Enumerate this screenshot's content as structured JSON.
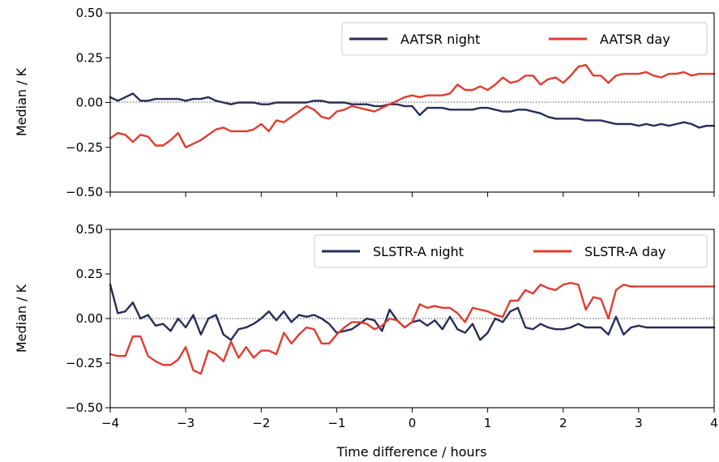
{
  "chart_data": [
    {
      "type": "line",
      "ylabel": "Median / K",
      "xlabel": "",
      "xlim": [
        -4,
        4
      ],
      "ylim": [
        -0.5,
        0.5
      ],
      "xticks": [
        "−4",
        "−3",
        "−2",
        "−1",
        "0",
        "1",
        "2",
        "3",
        "4"
      ],
      "yticks": [
        "−0.50",
        "−0.25",
        "0.00",
        "0.25",
        "0.50"
      ],
      "reference_line": 0,
      "legend_position": "top-right",
      "x": [
        -4.0,
        -3.9,
        -3.8,
        -3.7,
        -3.6,
        -3.5,
        -3.4,
        -3.3,
        -3.2,
        -3.1,
        -3.0,
        -2.9,
        -2.8,
        -2.7,
        -2.6,
        -2.5,
        -2.4,
        -2.3,
        -2.2,
        -2.1,
        -2.0,
        -1.9,
        -1.8,
        -1.7,
        -1.6,
        -1.5,
        -1.4,
        -1.3,
        -1.2,
        -1.1,
        -1.0,
        -0.9,
        -0.8,
        -0.7,
        -0.6,
        -0.5,
        -0.4,
        -0.3,
        -0.2,
        -0.1,
        0.0,
        0.1,
        0.2,
        0.3,
        0.4,
        0.5,
        0.6,
        0.7,
        0.8,
        0.9,
        1.0,
        1.1,
        1.2,
        1.3,
        1.4,
        1.5,
        1.6,
        1.7,
        1.8,
        1.9,
        2.0,
        2.1,
        2.2,
        2.3,
        2.4,
        2.5,
        2.6,
        2.7,
        2.8,
        2.9,
        3.0,
        3.1,
        3.2,
        3.3,
        3.4,
        3.5,
        3.6,
        3.7,
        3.8,
        3.9,
        4.0
      ],
      "series": [
        {
          "name": "AATSR night",
          "color": "#272d58",
          "values": [
            0.03,
            0.01,
            0.03,
            0.05,
            0.01,
            0.01,
            0.02,
            0.02,
            0.02,
            0.02,
            0.01,
            0.02,
            0.02,
            0.03,
            0.01,
            0.0,
            -0.01,
            0.0,
            0.0,
            0.0,
            -0.01,
            -0.01,
            0.0,
            0.0,
            0.0,
            0.0,
            0.0,
            0.01,
            0.01,
            0.0,
            0.0,
            0.0,
            -0.01,
            -0.01,
            -0.01,
            -0.02,
            -0.02,
            -0.01,
            -0.01,
            -0.02,
            -0.02,
            -0.07,
            -0.03,
            -0.03,
            -0.03,
            -0.04,
            -0.04,
            -0.04,
            -0.04,
            -0.03,
            -0.03,
            -0.04,
            -0.05,
            -0.05,
            -0.04,
            -0.04,
            -0.05,
            -0.06,
            -0.08,
            -0.09,
            -0.09,
            -0.09,
            -0.09,
            -0.1,
            -0.1,
            -0.1,
            -0.11,
            -0.12,
            -0.12,
            -0.12,
            -0.13,
            -0.12,
            -0.13,
            -0.12,
            -0.13,
            -0.12,
            -0.11,
            -0.12,
            -0.14,
            -0.13,
            -0.13
          ]
        },
        {
          "name": "AATSR day",
          "color": "#e03c31",
          "values": [
            -0.2,
            -0.17,
            -0.18,
            -0.22,
            -0.18,
            -0.19,
            -0.24,
            -0.24,
            -0.21,
            -0.17,
            -0.25,
            -0.23,
            -0.21,
            -0.18,
            -0.15,
            -0.14,
            -0.16,
            -0.16,
            -0.16,
            -0.15,
            -0.12,
            -0.16,
            -0.1,
            -0.11,
            -0.08,
            -0.05,
            -0.02,
            -0.04,
            -0.08,
            -0.09,
            -0.05,
            -0.04,
            -0.02,
            -0.03,
            -0.04,
            -0.05,
            -0.03,
            -0.01,
            0.01,
            0.03,
            0.04,
            0.03,
            0.04,
            0.04,
            0.04,
            0.05,
            0.1,
            0.07,
            0.07,
            0.09,
            0.07,
            0.1,
            0.14,
            0.11,
            0.12,
            0.15,
            0.15,
            0.1,
            0.13,
            0.14,
            0.11,
            0.15,
            0.2,
            0.21,
            0.15,
            0.15,
            0.11,
            0.15,
            0.16,
            0.16,
            0.16,
            0.17,
            0.15,
            0.14,
            0.16,
            0.16,
            0.17,
            0.15,
            0.16,
            0.16,
            0.16
          ]
        }
      ]
    },
    {
      "type": "line",
      "ylabel": "Median / K",
      "xlabel": "Time difference / hours",
      "xlim": [
        -4,
        4
      ],
      "ylim": [
        -0.5,
        0.5
      ],
      "xticks": [
        "−4",
        "−3",
        "−2",
        "−1",
        "0",
        "1",
        "2",
        "3",
        "4"
      ],
      "yticks": [
        "−0.50",
        "−0.25",
        "0.00",
        "0.25",
        "0.50"
      ],
      "reference_line": 0,
      "legend_position": "top-right",
      "x": [
        -4.0,
        -3.9,
        -3.8,
        -3.7,
        -3.6,
        -3.5,
        -3.4,
        -3.3,
        -3.2,
        -3.1,
        -3.0,
        -2.9,
        -2.8,
        -2.7,
        -2.6,
        -2.5,
        -2.4,
        -2.3,
        -2.2,
        -2.1,
        -2.0,
        -1.9,
        -1.8,
        -1.7,
        -1.6,
        -1.5,
        -1.4,
        -1.3,
        -1.2,
        -1.1,
        -1.0,
        -0.9,
        -0.8,
        -0.7,
        -0.6,
        -0.5,
        -0.4,
        -0.3,
        -0.2,
        -0.1,
        0.0,
        0.1,
        0.2,
        0.3,
        0.4,
        0.5,
        0.6,
        0.7,
        0.8,
        0.9,
        1.0,
        1.1,
        1.2,
        1.3,
        1.4,
        1.5,
        1.6,
        1.7,
        1.8,
        1.9,
        2.0,
        2.1,
        2.2,
        2.3,
        2.4,
        2.5,
        2.6,
        2.7,
        2.8,
        2.9,
        3.0,
        3.1,
        3.2,
        3.3,
        3.4,
        3.5,
        3.6,
        3.7,
        3.8,
        3.9,
        4.0
      ],
      "series": [
        {
          "name": "SLSTR-A night",
          "color": "#272d58",
          "values": [
            0.19,
            0.03,
            0.04,
            0.09,
            0.0,
            0.02,
            -0.04,
            -0.03,
            -0.07,
            0.0,
            -0.05,
            0.02,
            -0.09,
            0.0,
            0.02,
            -0.09,
            -0.12,
            -0.06,
            -0.05,
            -0.03,
            0.0,
            0.04,
            -0.01,
            0.04,
            -0.02,
            0.02,
            0.01,
            0.02,
            0.0,
            -0.03,
            -0.08,
            -0.07,
            -0.06,
            -0.03,
            0.0,
            -0.01,
            -0.07,
            0.05,
            -0.01,
            -0.05,
            -0.02,
            -0.01,
            -0.04,
            -0.01,
            -0.06,
            0.01,
            -0.06,
            -0.08,
            -0.03,
            -0.12,
            -0.08,
            0.0,
            -0.02,
            0.04,
            0.06,
            -0.05,
            -0.06,
            -0.03,
            -0.05,
            -0.06,
            -0.06,
            -0.05,
            -0.03,
            -0.05,
            -0.05,
            -0.05,
            -0.09,
            0.01,
            -0.09,
            -0.05,
            -0.04,
            -0.05,
            -0.05,
            -0.05,
            -0.05,
            -0.05,
            -0.05,
            -0.05,
            -0.05,
            -0.05,
            -0.05
          ]
        },
        {
          "name": "SLSTR-A day",
          "color": "#e03c31",
          "values": [
            -0.2,
            -0.21,
            -0.21,
            -0.1,
            -0.1,
            -0.21,
            -0.24,
            -0.26,
            -0.26,
            -0.23,
            -0.16,
            -0.29,
            -0.31,
            -0.18,
            -0.2,
            -0.24,
            -0.13,
            -0.22,
            -0.16,
            -0.22,
            -0.18,
            -0.18,
            -0.2,
            -0.08,
            -0.14,
            -0.09,
            -0.05,
            -0.06,
            -0.14,
            -0.14,
            -0.09,
            -0.05,
            -0.02,
            -0.02,
            -0.03,
            -0.06,
            -0.04,
            0.0,
            -0.01,
            -0.05,
            -0.02,
            0.08,
            0.06,
            0.07,
            0.06,
            0.06,
            0.03,
            -0.02,
            0.06,
            0.05,
            0.04,
            0.02,
            0.01,
            0.1,
            0.1,
            0.16,
            0.14,
            0.19,
            0.17,
            0.16,
            0.19,
            0.2,
            0.19,
            0.05,
            0.12,
            0.11,
            0.0,
            0.16,
            0.19,
            0.18,
            0.18,
            0.18,
            0.18,
            0.18,
            0.18,
            0.18,
            0.18,
            0.18,
            0.18,
            0.18,
            0.18
          ]
        }
      ]
    }
  ]
}
